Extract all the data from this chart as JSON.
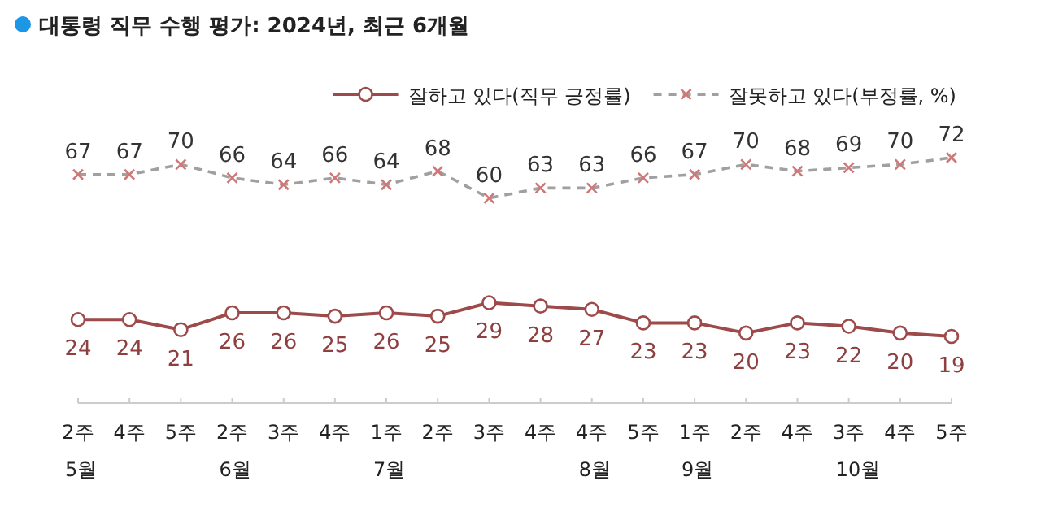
{
  "chart_data": {
    "type": "line",
    "title": "대통령 직무 수행 평가: 2024년, 최근 6개월",
    "categories": [
      "2주\n5월",
      "4주",
      "5주",
      "2주\n6월",
      "3주",
      "4주",
      "1주\n7월",
      "2주",
      "3주",
      "4주",
      "4주\n8월",
      "5주",
      "1주\n9월",
      "2주",
      "4주",
      "3주\n10월",
      "4주",
      "5주"
    ],
    "series": [
      {
        "name": "잘하고 있다(직무 긍정률)",
        "color": "#9e4a4a",
        "marker": "circle",
        "line_style": "solid",
        "values": [
          24,
          24,
          21,
          26,
          26,
          25,
          26,
          25,
          29,
          28,
          27,
          23,
          23,
          20,
          23,
          22,
          20,
          19
        ]
      },
      {
        "name": "잘못하고 있다(부정률, %)",
        "color": "#a0a0a0",
        "marker": "cross",
        "line_style": "dashed",
        "values": [
          67,
          67,
          70,
          66,
          64,
          66,
          64,
          68,
          60,
          63,
          63,
          66,
          67,
          70,
          68,
          69,
          70,
          72
        ]
      }
    ],
    "data_labels": true,
    "legend": "top right"
  }
}
